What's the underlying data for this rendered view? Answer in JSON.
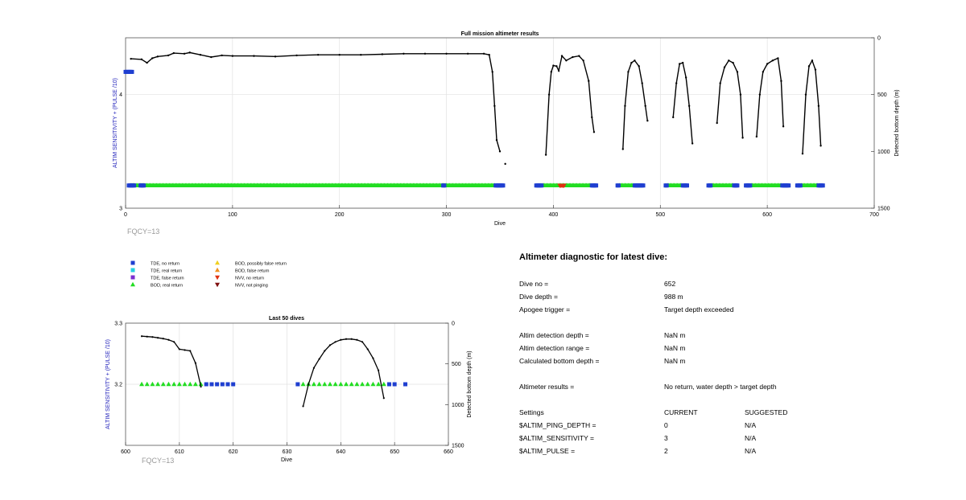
{
  "top_chart": {
    "title": "Full mission altimeter results",
    "xlabel": "Dive",
    "ylabel_left": "ALTIM SENSITIVITY + (PULSE /10)",
    "ylabel_right": "Detected bottom depth (m)",
    "x_ticks": [
      "0",
      "100",
      "200",
      "300",
      "400",
      "500",
      "600",
      "700"
    ],
    "y_left_ticks": [
      "3",
      "4"
    ],
    "y_right_ticks": [
      "0",
      "500",
      "1000",
      "1500"
    ],
    "note": "FQCY=13"
  },
  "legend": [
    {
      "label": "TDE, no return",
      "color": "#1f3fd0",
      "shape": "square"
    },
    {
      "label": "TDE, real return",
      "color": "#25d0e0",
      "shape": "square"
    },
    {
      "label": "TDE, false return",
      "color": "#7b2fd0",
      "shape": "square"
    },
    {
      "label": "BOD, real return",
      "color": "#22dd22",
      "shape": "triangle-up"
    },
    {
      "label": "BOD, possibly false return",
      "color": "#f0d020",
      "shape": "triangle-up"
    },
    {
      "label": "BOD, false return",
      "color": "#f09020",
      "shape": "triangle-up"
    },
    {
      "label": "NVV, no return",
      "color": "#e03010",
      "shape": "triangle-down"
    },
    {
      "label": "NVV, not pinging",
      "color": "#801010",
      "shape": "triangle-down"
    }
  ],
  "bottom_chart": {
    "title": "Last 50 dives",
    "xlabel": "Dive",
    "ylabel_left": "ALTIM SENSITIVITY + (PULSE /10)",
    "ylabel_right": "Detected bottom depth (m)",
    "x_ticks": [
      "600",
      "610",
      "620",
      "630",
      "640",
      "650",
      "660"
    ],
    "y_left_ticks": [
      "3.3",
      "3.2"
    ],
    "y_right_ticks": [
      "0",
      "500",
      "1000",
      "1500"
    ],
    "note": "FQCY=13"
  },
  "diagnostic": {
    "title": "Altimeter diagnostic for latest dive:",
    "dive_no_label": "Dive no =",
    "dive_no": "652",
    "dive_depth_label": "Dive depth =",
    "dive_depth": "988 m",
    "apogee_label": "Apogee trigger =",
    "apogee": "Target depth exceeded",
    "det_depth_label": "Altim detection depth =",
    "det_depth": "NaN m",
    "det_range_label": "Altim detection range =",
    "det_range": "NaN m",
    "calc_depth_label": "Calculated bottom depth =",
    "calc_depth": "NaN m",
    "results_label": "Altimeter results =",
    "results": "No return, water depth > target depth",
    "settings_label": "Settings",
    "current_label": "CURRENT",
    "suggested_label": "SUGGESTED",
    "settings": [
      {
        "name": "$ALTIM_PING_DEPTH =",
        "current": "0",
        "suggested": "N/A"
      },
      {
        "name": "$ALTIM_SENSITIVITY =",
        "current": "3",
        "suggested": "N/A"
      },
      {
        "name": "$ALTIM_PULSE =",
        "current": "2",
        "suggested": "N/A"
      }
    ]
  },
  "chart_data": [
    {
      "type": "scatter",
      "title": "Full mission altimeter results",
      "xlabel": "Dive",
      "xlim": [
        0,
        700
      ],
      "ylabel": "ALTIM SENSITIVITY + (PULSE /10)",
      "ylim": [
        3,
        4.5
      ],
      "y2label": "Detected bottom depth (m)",
      "y2lim": [
        1500,
        0
      ],
      "grid": true,
      "series": [
        {
          "name": "BOD, real return",
          "value": 3.2,
          "dive_ranges": [
            [
              5,
              345
            ],
            [
              390,
              435
            ],
            [
              462,
              475
            ],
            [
              507,
              520
            ],
            [
              548,
              568
            ],
            [
              585,
              613
            ],
            [
              632,
              647
            ]
          ]
        },
        {
          "name": "TDE, no return",
          "value": 3.2,
          "dives": [
            3,
            4,
            5,
            6,
            7,
            8,
            14,
            15,
            16,
            17,
            297,
            298,
            346,
            347,
            348,
            349,
            350,
            351,
            352,
            353,
            384,
            385,
            386,
            387,
            388,
            389,
            436,
            437,
            438,
            439,
            440,
            460,
            461,
            476,
            477,
            478,
            479,
            480,
            481,
            482,
            483,
            484,
            505,
            506,
            521,
            522,
            523,
            524,
            525,
            545,
            546,
            547,
            569,
            570,
            571,
            572,
            580,
            581,
            582,
            583,
            584,
            614,
            615,
            616,
            617,
            618,
            619,
            620,
            628,
            629,
            630,
            631,
            648,
            649,
            650,
            651,
            652
          ]
        },
        {
          "name": "TDE, no return (early)",
          "value": 4.2,
          "dive_ranges": [
            [
              0,
              6
            ]
          ]
        },
        {
          "name": "NVV, no return",
          "value": 3.2,
          "dives": [
            406,
            407,
            408,
            409,
            410
          ]
        },
        {
          "name": "Detected bottom depth",
          "axis": "right",
          "segments": [
            [
              [
                5,
                185
              ],
              [
                15,
                190
              ],
              [
                20,
                220
              ],
              [
                25,
                180
              ],
              [
                30,
                165
              ],
              [
                40,
                155
              ],
              [
                45,
                135
              ],
              [
                55,
                140
              ],
              [
                60,
                130
              ],
              [
                70,
                150
              ],
              [
                80,
                170
              ],
              [
                90,
                155
              ],
              [
                100,
                160
              ],
              [
                120,
                160
              ],
              [
                140,
                165
              ],
              [
                160,
                155
              ],
              [
                180,
                150
              ],
              [
                200,
                150
              ],
              [
                220,
                150
              ],
              [
                240,
                145
              ],
              [
                260,
                140
              ],
              [
                280,
                140
              ],
              [
                300,
                140
              ],
              [
                320,
                140
              ],
              [
                335,
                140
              ],
              [
                340,
                150
              ],
              [
                343,
                300
              ],
              [
                345,
                600
              ],
              [
                347,
                900
              ],
              [
                350,
                1000
              ]
            ],
            [
              [
                355,
                1110
              ]
            ],
            [
              [
                393,
                1030
              ],
              [
                396,
                500
              ],
              [
                398,
                300
              ],
              [
                400,
                245
              ],
              [
                403,
                250
              ],
              [
                405,
                290
              ],
              [
                408,
                160
              ],
              [
                412,
                200
              ],
              [
                418,
                170
              ],
              [
                424,
                160
              ],
              [
                428,
                200
              ],
              [
                433,
                380
              ],
              [
                436,
                700
              ],
              [
                438,
                830
              ]
            ],
            [
              [
                465,
                980
              ],
              [
                467,
                600
              ],
              [
                470,
                300
              ],
              [
                473,
                220
              ],
              [
                476,
                200
              ],
              [
                480,
                250
              ],
              [
                483,
                400
              ],
              [
                486,
                600
              ],
              [
                488,
                730
              ]
            ],
            [
              [
                512,
                700
              ],
              [
                515,
                400
              ],
              [
                518,
                230
              ],
              [
                521,
                220
              ],
              [
                524,
                350
              ],
              [
                527,
                600
              ],
              [
                530,
                930
              ]
            ],
            [
              [
                553,
                750
              ],
              [
                556,
                400
              ],
              [
                560,
                260
              ],
              [
                564,
                200
              ],
              [
                568,
                220
              ],
              [
                572,
                300
              ],
              [
                575,
                500
              ],
              [
                577,
                880
              ]
            ],
            [
              [
                590,
                870
              ],
              [
                593,
                500
              ],
              [
                596,
                300
              ],
              [
                600,
                230
              ],
              [
                605,
                200
              ],
              [
                610,
                180
              ],
              [
                613,
                380
              ],
              [
                615,
                780
              ]
            ],
            [
              [
                633,
                1020
              ],
              [
                636,
                500
              ],
              [
                639,
                250
              ],
              [
                642,
                200
              ],
              [
                645,
                280
              ],
              [
                648,
                600
              ],
              [
                650,
                950
              ]
            ]
          ]
        }
      ]
    },
    {
      "type": "scatter",
      "title": "Last 50 dives",
      "xlabel": "Dive",
      "xlim": [
        600,
        660
      ],
      "ylabel": "ALTIM SENSITIVITY + (PULSE /10)",
      "ylim": [
        3.1,
        3.3
      ],
      "y2label": "Detected bottom depth (m)",
      "y2lim": [
        1500,
        0
      ],
      "grid": true,
      "series": [
        {
          "name": "BOD, real return",
          "value": 3.2,
          "dives": [
            603,
            604,
            605,
            606,
            607,
            608,
            609,
            610,
            611,
            612,
            613,
            614,
            633,
            634,
            635,
            636,
            637,
            638,
            639,
            640,
            641,
            642,
            643,
            644,
            645,
            646,
            647,
            648
          ]
        },
        {
          "name": "TDE, no return",
          "value": 3.2,
          "dives": [
            615,
            616,
            617,
            618,
            619,
            620,
            632,
            649,
            650,
            652
          ]
        },
        {
          "name": "Detected bottom depth",
          "axis": "right",
          "segments": [
            [
              [
                603,
                160
              ],
              [
                604,
                165
              ],
              [
                605,
                170
              ],
              [
                606,
                180
              ],
              [
                607,
                190
              ],
              [
                608,
                205
              ],
              [
                609,
                230
              ],
              [
                610,
                320
              ],
              [
                611,
                330
              ],
              [
                612,
                340
              ],
              [
                613,
                490
              ],
              [
                614,
                780
              ]
            ],
            [
              [
                633,
                1020
              ],
              [
                634,
                750
              ],
              [
                635,
                550
              ],
              [
                636,
                440
              ],
              [
                637,
                340
              ],
              [
                638,
                270
              ],
              [
                639,
                230
              ],
              [
                640,
                205
              ],
              [
                641,
                195
              ],
              [
                642,
                195
              ],
              [
                643,
                205
              ],
              [
                644,
                230
              ],
              [
                645,
                320
              ],
              [
                646,
                430
              ],
              [
                647,
                580
              ],
              [
                648,
                920
              ]
            ]
          ]
        }
      ]
    }
  ]
}
